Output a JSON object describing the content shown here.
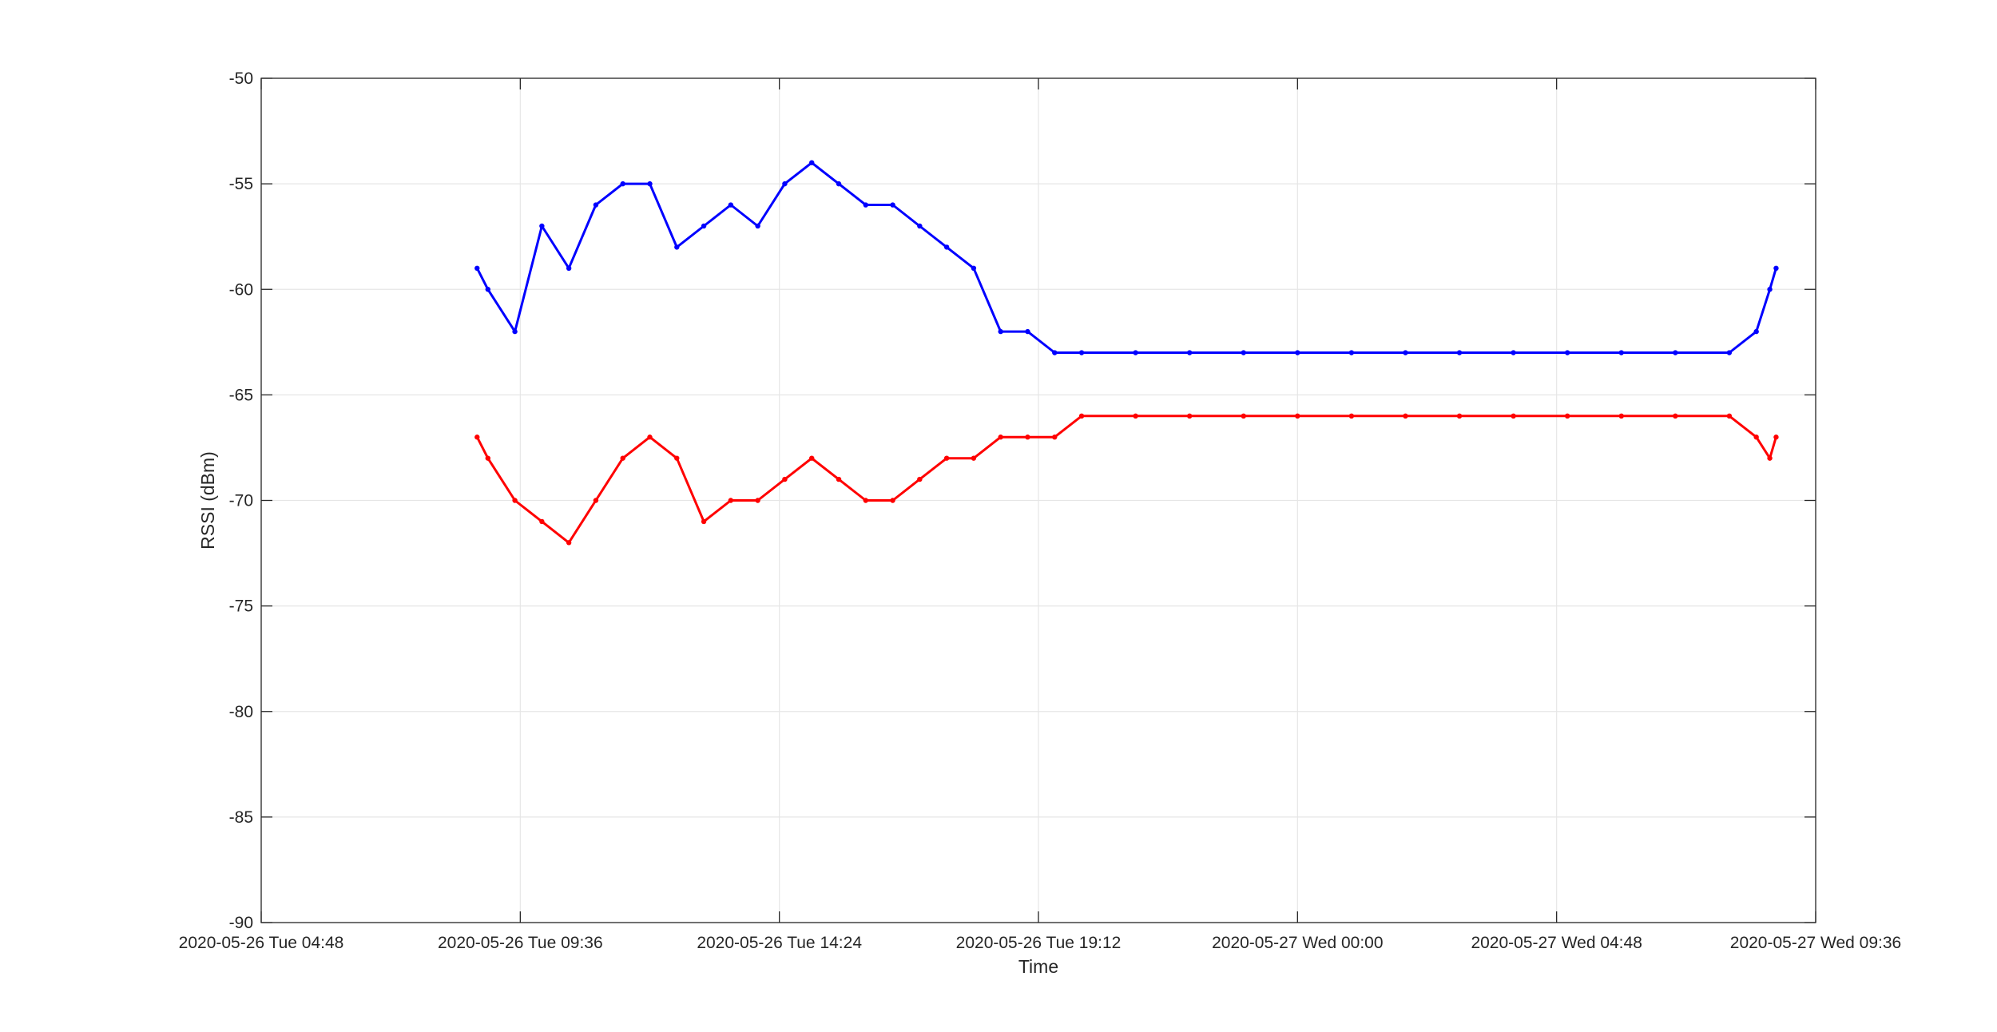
{
  "chart_data": {
    "type": "line",
    "title": "",
    "xlabel": "Time",
    "ylabel": "RSSI (dBm)",
    "ylim": [
      -90,
      -50
    ],
    "yticks": [
      -50,
      -55,
      -60,
      -65,
      -70,
      -75,
      -80,
      -85,
      -90
    ],
    "xlim": [
      "2020-05-26 04:48",
      "2020-05-27 09:36"
    ],
    "xticks": [
      {
        "time": "2020-05-26 04:48",
        "label": "2020-05-26 Tue 04:48"
      },
      {
        "time": "2020-05-26 09:36",
        "label": "2020-05-26 Tue 09:36"
      },
      {
        "time": "2020-05-26 14:24",
        "label": "2020-05-26 Tue 14:24"
      },
      {
        "time": "2020-05-26 19:12",
        "label": "2020-05-26 Tue 19:12"
      },
      {
        "time": "2020-05-27 00:00",
        "label": "2020-05-27 Wed 00:00"
      },
      {
        "time": "2020-05-27 04:48",
        "label": "2020-05-27 Wed 04:48"
      },
      {
        "time": "2020-05-27 09:36",
        "label": "2020-05-27 Wed 09:36"
      }
    ],
    "grid": true,
    "series": [
      {
        "color": "#0000ff",
        "x": [
          "2020-05-26 08:48",
          "2020-05-26 09:00",
          "2020-05-26 09:30",
          "2020-05-26 10:00",
          "2020-05-26 10:30",
          "2020-05-26 11:00",
          "2020-05-26 11:30",
          "2020-05-26 12:00",
          "2020-05-26 12:30",
          "2020-05-26 13:00",
          "2020-05-26 13:30",
          "2020-05-26 14:00",
          "2020-05-26 14:30",
          "2020-05-26 15:00",
          "2020-05-26 15:30",
          "2020-05-26 16:00",
          "2020-05-26 16:30",
          "2020-05-26 17:00",
          "2020-05-26 17:30",
          "2020-05-26 18:00",
          "2020-05-26 18:30",
          "2020-05-26 19:00",
          "2020-05-26 19:30",
          "2020-05-26 20:00",
          "2020-05-26 21:00",
          "2020-05-26 22:00",
          "2020-05-26 23:00",
          "2020-05-27 00:00",
          "2020-05-27 01:00",
          "2020-05-27 02:00",
          "2020-05-27 03:00",
          "2020-05-27 04:00",
          "2020-05-27 05:00",
          "2020-05-27 06:00",
          "2020-05-27 07:00",
          "2020-05-27 08:00",
          "2020-05-27 08:30",
          "2020-05-27 08:45",
          "2020-05-27 08:52"
        ],
        "y": [
          -59,
          -60,
          -62,
          -57,
          -59,
          -56,
          -55,
          -55,
          -58,
          -57,
          -56,
          -57,
          -55,
          -54,
          -55,
          -56,
          -56,
          -57,
          -58,
          -59,
          -62,
          -62,
          -63,
          -63,
          -63,
          -63,
          -63,
          -63,
          -63,
          -63,
          -63,
          -63,
          -63,
          -63,
          -63,
          -63,
          -62,
          -60,
          -59
        ]
      },
      {
        "color": "#ff0000",
        "x": [
          "2020-05-26 08:48",
          "2020-05-26 09:00",
          "2020-05-26 09:30",
          "2020-05-26 10:00",
          "2020-05-26 10:30",
          "2020-05-26 11:00",
          "2020-05-26 11:30",
          "2020-05-26 12:00",
          "2020-05-26 12:30",
          "2020-05-26 13:00",
          "2020-05-26 13:30",
          "2020-05-26 14:00",
          "2020-05-26 14:30",
          "2020-05-26 15:00",
          "2020-05-26 15:30",
          "2020-05-26 16:00",
          "2020-05-26 16:30",
          "2020-05-26 17:00",
          "2020-05-26 17:30",
          "2020-05-26 18:00",
          "2020-05-26 18:30",
          "2020-05-26 19:00",
          "2020-05-26 19:30",
          "2020-05-26 20:00",
          "2020-05-26 21:00",
          "2020-05-26 22:00",
          "2020-05-26 23:00",
          "2020-05-27 00:00",
          "2020-05-27 01:00",
          "2020-05-27 02:00",
          "2020-05-27 03:00",
          "2020-05-27 04:00",
          "2020-05-27 05:00",
          "2020-05-27 06:00",
          "2020-05-27 07:00",
          "2020-05-27 08:00",
          "2020-05-27 08:30",
          "2020-05-27 08:45",
          "2020-05-27 08:52"
        ],
        "y": [
          -67,
          -68,
          -70,
          -71,
          -72,
          -70,
          -68,
          -67,
          -68,
          -71,
          -70,
          -70,
          -69,
          -68,
          -69,
          -70,
          -70,
          -69,
          -68,
          -68,
          -67,
          -67,
          -67,
          -66,
          -66,
          -66,
          -66,
          -66,
          -66,
          -66,
          -66,
          -66,
          -66,
          -66,
          -66,
          -66,
          -67,
          -68,
          -67
        ]
      }
    ]
  }
}
